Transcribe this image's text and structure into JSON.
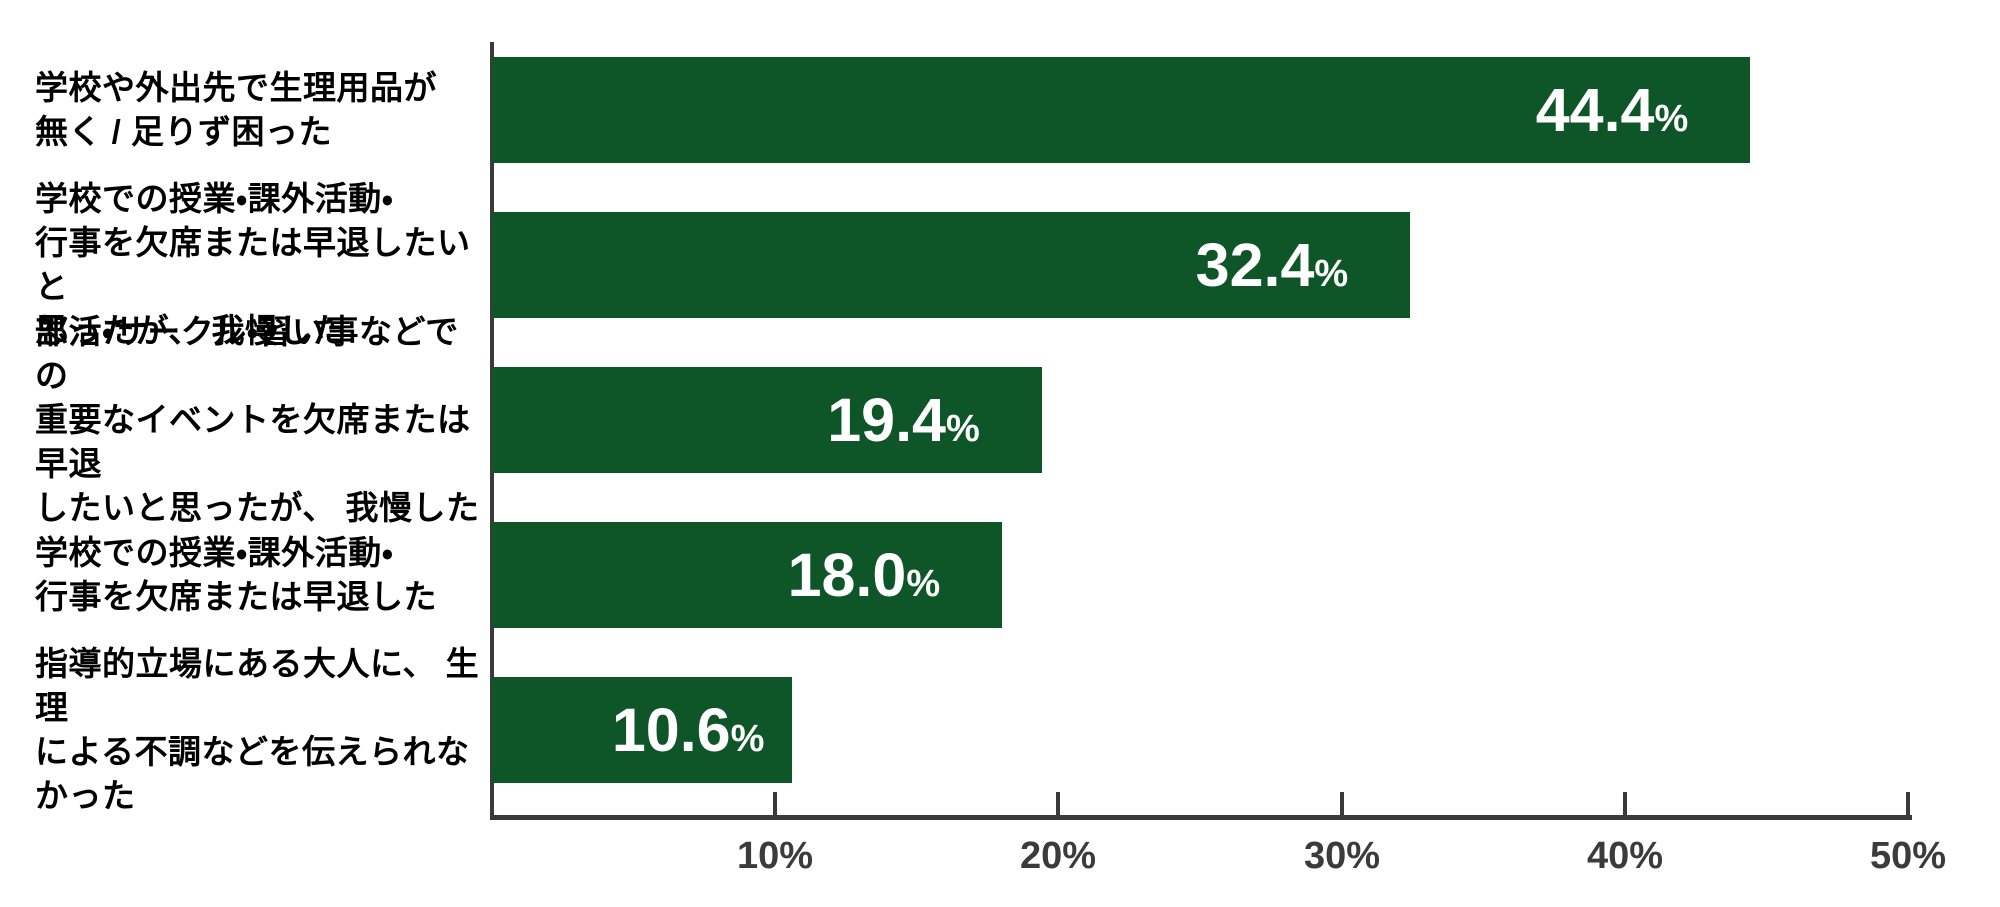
{
  "chart_data": {
    "type": "bar",
    "orientation": "horizontal",
    "title": "",
    "xlabel": "",
    "ylabel": "",
    "xlim": [
      0,
      50
    ],
    "grid": false,
    "x_tick_labels": [
      "10%",
      "20%",
      "30%",
      "40%",
      "50%"
    ],
    "unit": "%",
    "categories": [
      "学校や外出先で生理用品が\n無く / 足りず困った",
      "学校での授業・課外活動・\n行事を欠席または早退したいと\n思ったが、 我慢した",
      "部活・サークル・習い事などでの\n重要なイベントを欠席または早退\nしたいと思ったが、 我慢した",
      "学校での授業・課外活動・\n行事を欠席または早退した",
      "指導的立場にある大人に、 生理\nによる不調などを伝えられなかった"
    ],
    "values": [
      44.4,
      32.4,
      19.4,
      18.0,
      10.6
    ],
    "items": [
      {
        "label": "学校や外出先で生理用品が\n無く / 足りず困った",
        "value": 44.4,
        "value_label": "44.4"
      },
      {
        "label": "学校での授業・課外活動・\n行事を欠席または早退したいと\n思ったが、 我慢した",
        "value": 32.4,
        "value_label": "32.4"
      },
      {
        "label": "部活・サークル・習い事などでの\n重要なイベントを欠席または早退\nしたいと思ったが、 我慢した",
        "value": 19.4,
        "value_label": "19.4"
      },
      {
        "label": "学校での授業・課外活動・\n行事を欠席または早退した",
        "value": 18.0,
        "value_label": "18.0"
      },
      {
        "label": "指導的立場にある大人に、 生理\nによる不調などを伝えられなかった",
        "value": 10.6,
        "value_label": "10.6"
      }
    ],
    "colors": {
      "bar": "#0e5628",
      "value_text": "#ffffff",
      "category_text": "#000000",
      "axis": "#3a3a3a",
      "tick_text": "#3b3b3b",
      "background": "#ffffff"
    },
    "legend": null
  }
}
